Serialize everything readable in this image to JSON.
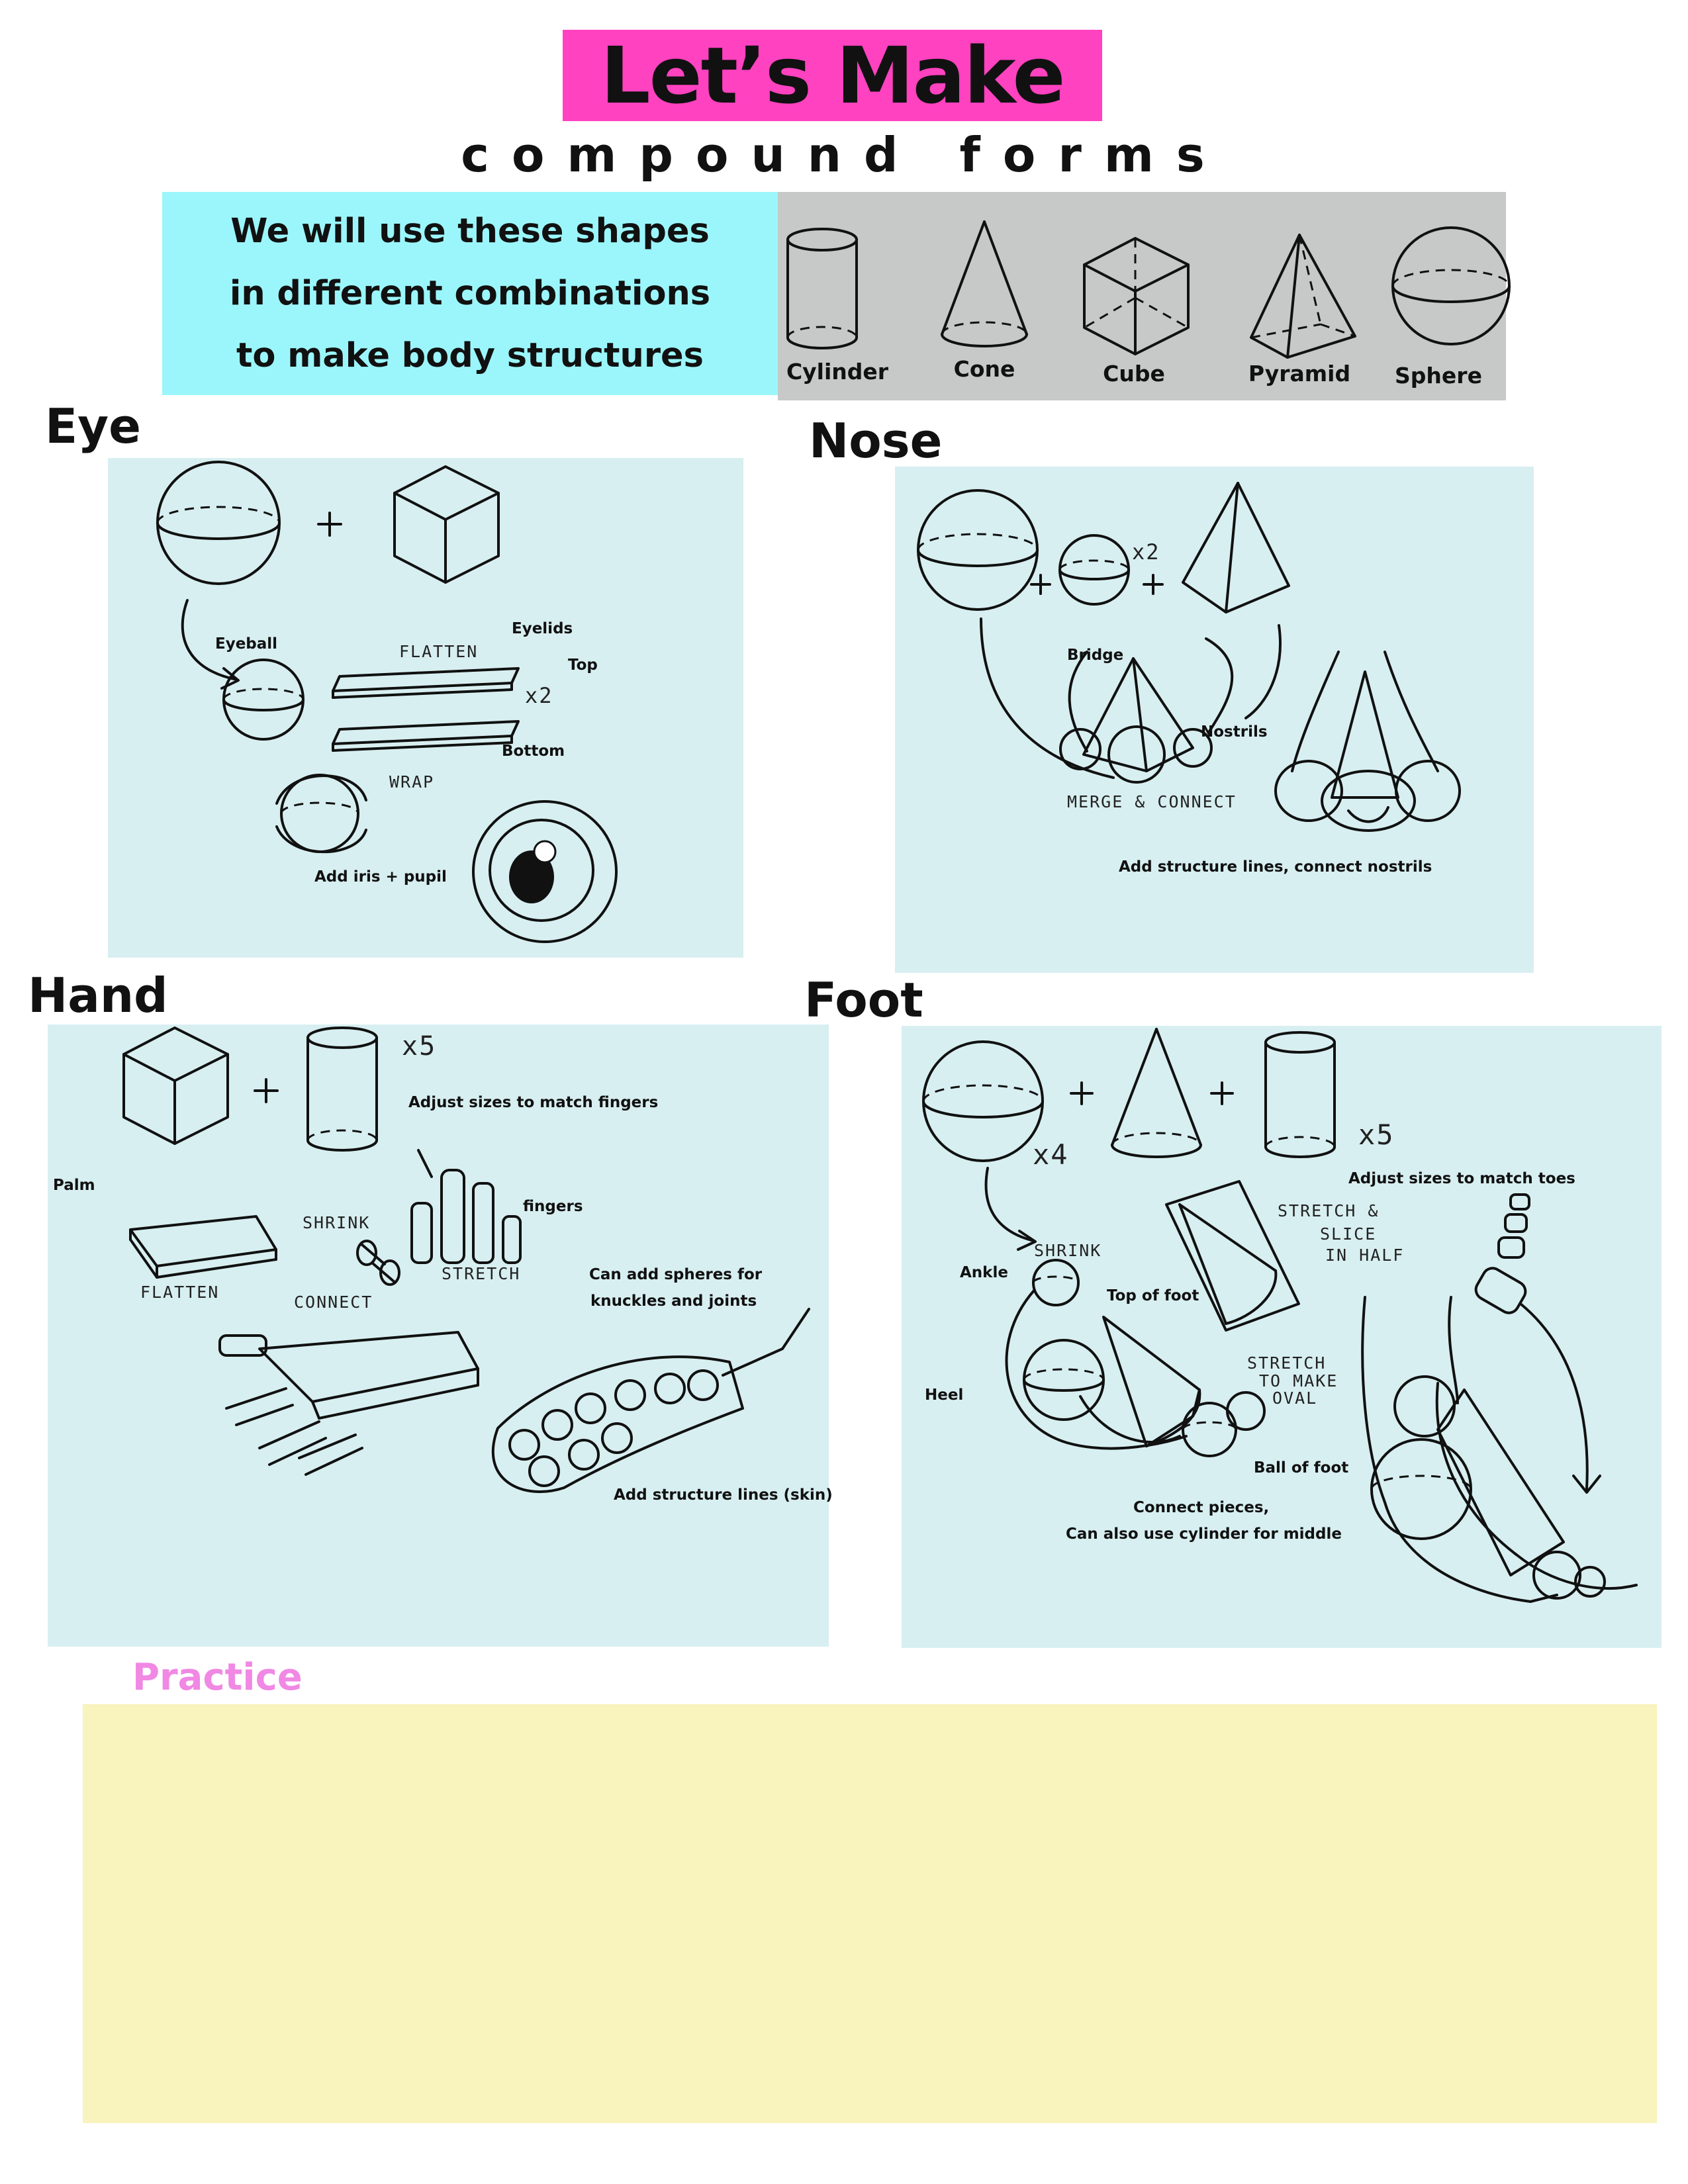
{
  "header": {
    "title": "Let’s Make",
    "subtitle": "compound forms"
  },
  "intro": {
    "lines": [
      "We will use these  shapes",
      "in different combinations",
      "to make body structures"
    ]
  },
  "shapes": [
    {
      "label": "Cylinder",
      "icon": "cylinder-icon"
    },
    {
      "label": "Cone",
      "icon": "cone-icon"
    },
    {
      "label": "Cube",
      "icon": "cube-icon"
    },
    {
      "label": "Pyramid",
      "icon": "pyramid-icon"
    },
    {
      "label": "Sphere",
      "icon": "sphere-icon"
    }
  ],
  "eye": {
    "title": "Eye",
    "eyeball": "Eyeball",
    "eyelids": "Eyelids",
    "flatten": "FLATTEN",
    "top": "Top",
    "x2": "x2",
    "bottom": "Bottom",
    "wrap": "WRAP",
    "iris": "Add iris + pupil"
  },
  "nose": {
    "title": "Nose",
    "x2": "x2",
    "bridge": "Bridge",
    "nostrils": "Nostrils",
    "merge": "MERGE & CONNECT",
    "structure": "Add structure lines, connect nostrils"
  },
  "hand": {
    "title": "Hand",
    "x5": "x5",
    "adjust": "Adjust sizes to match fingers",
    "palm": "Palm",
    "shrink": "SHRINK",
    "fingers": "fingers",
    "stretch": "STRETCH",
    "flatten": "FLATTEN",
    "connect": "CONNECT",
    "spheres_1": "Can add spheres for",
    "spheres_2": "knuckles and joints",
    "structure": "Add structure lines (skin)"
  },
  "foot": {
    "title": "Foot",
    "x4": "x4",
    "x5": "x5",
    "adjust": "Adjust sizes to match toes",
    "stretch_slice_1": "STRETCH &",
    "stretch_slice_2": "SLICE",
    "stretch_slice_3": "IN HALF",
    "shrink": "SHRINK",
    "ankle": "Ankle",
    "top_of_foot": "Top of foot",
    "heel": "Heel",
    "stretch_oval_1": "STRETCH",
    "stretch_oval_2": "TO MAKE",
    "stretch_oval_3": "OVAL",
    "ball_of_foot": "Ball of foot",
    "connect_1": "Connect pieces,",
    "connect_2": "Can also use cylinder for middle"
  },
  "practice": {
    "title": "Practice"
  }
}
